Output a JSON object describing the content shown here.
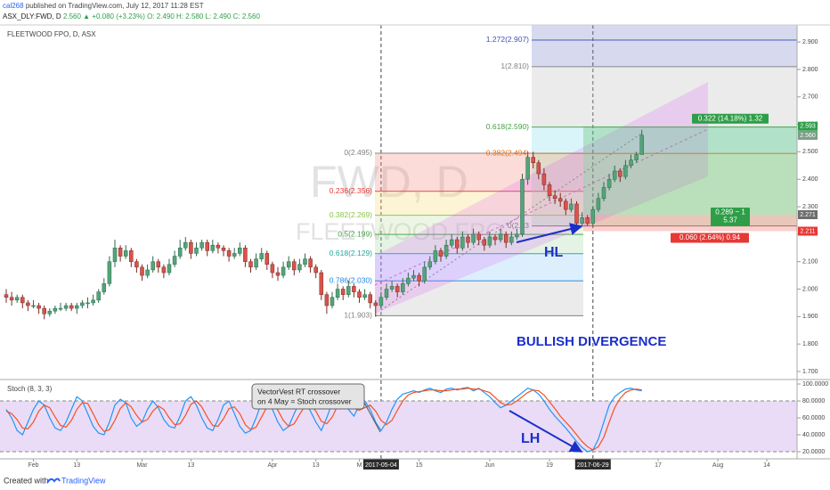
{
  "header": {
    "user": "cal268",
    "published": "published on TradingView.com, July 12, 2017 11:28 EST",
    "symbol": "ASX_DLY:FWD, D",
    "last": "2.560",
    "change": "▲ +0.080 (+3.23%)",
    "ohlc": "O: 2.490 H: 2.580 L: 2.490 C: 2.560"
  },
  "footer": {
    "created": "Created with",
    "brand": "TradingView"
  },
  "chart_data": [
    {
      "type": "candlestick",
      "title": "FLEETWOOD FPO, D, ASX",
      "watermark": {
        "symbol": "FWD, D",
        "name": "FLEETWOOD FPO"
      },
      "up_color": "#53a47a",
      "down_color": "#d9534a",
      "grid": false,
      "ylim": [
        1.674,
        2.962
      ],
      "yticks": [
        {
          "value": 2.9,
          "label": "2.900"
        },
        {
          "value": 2.8,
          "label": "2.800"
        },
        {
          "value": 2.7,
          "label": "2.700"
        },
        {
          "value": 2.6,
          "label": "2.600"
        },
        {
          "value": 2.5,
          "label": "2.500"
        },
        {
          "value": 2.4,
          "label": "2.400"
        },
        {
          "value": 2.3,
          "label": "2.300"
        },
        {
          "value": 2.2,
          "label": "2.200"
        },
        {
          "value": 2.1,
          "label": "2.100"
        },
        {
          "value": 2.0,
          "label": "2.000"
        },
        {
          "value": 1.9,
          "label": "1.900"
        },
        {
          "value": 1.8,
          "label": "1.800"
        },
        {
          "value": 1.7,
          "label": "1.700"
        }
      ],
      "xticks": [
        {
          "value": 5,
          "label": "Feb"
        },
        {
          "value": 13,
          "label": "13"
        },
        {
          "value": 25,
          "label": "Mar"
        },
        {
          "value": 34,
          "label": "13"
        },
        {
          "value": 49,
          "label": "Apr"
        },
        {
          "value": 57,
          "label": "13"
        },
        {
          "value": 65,
          "label": "M"
        },
        {
          "value": 69,
          "label": "2017-05-04",
          "highlight": true
        },
        {
          "value": 76,
          "label": "15"
        },
        {
          "value": 89,
          "label": "Jun"
        },
        {
          "value": 100,
          "label": "19"
        },
        {
          "value": 108,
          "label": "2017-06-29",
          "highlight": true
        },
        {
          "value": 120,
          "label": "17"
        },
        {
          "value": 131,
          "label": "Aug"
        },
        {
          "value": 140,
          "label": "14"
        }
      ],
      "ohlc": [
        [
          1.98,
          2.0,
          1.95,
          1.97
        ],
        [
          1.97,
          1.99,
          1.94,
          1.96
        ],
        [
          1.96,
          1.98,
          1.95,
          1.97
        ],
        [
          1.97,
          1.98,
          1.93,
          1.95
        ],
        [
          1.95,
          1.96,
          1.92,
          1.94
        ],
        [
          1.94,
          1.96,
          1.93,
          1.94
        ],
        [
          1.94,
          1.95,
          1.91,
          1.93
        ],
        [
          1.93,
          1.94,
          1.89,
          1.91
        ],
        [
          1.91,
          1.93,
          1.9,
          1.92
        ],
        [
          1.92,
          1.94,
          1.91,
          1.93
        ],
        [
          1.93,
          1.95,
          1.92,
          1.93
        ],
        [
          1.93,
          1.95,
          1.92,
          1.94
        ],
        [
          1.94,
          1.95,
          1.92,
          1.93
        ],
        [
          1.93,
          1.95,
          1.91,
          1.94
        ],
        [
          1.94,
          1.96,
          1.93,
          1.95
        ],
        [
          1.95,
          1.97,
          1.93,
          1.95
        ],
        [
          1.95,
          1.98,
          1.94,
          1.96
        ],
        [
          1.96,
          2.0,
          1.95,
          1.99
        ],
        [
          1.99,
          2.04,
          1.98,
          2.02
        ],
        [
          2.02,
          2.12,
          2.01,
          2.1
        ],
        [
          2.1,
          2.18,
          2.08,
          2.15
        ],
        [
          2.15,
          2.16,
          2.1,
          2.12
        ],
        [
          2.12,
          2.16,
          2.11,
          2.14
        ],
        [
          2.14,
          2.15,
          2.08,
          2.1
        ],
        [
          2.1,
          2.11,
          2.06,
          2.08
        ],
        [
          2.08,
          2.09,
          2.03,
          2.05
        ],
        [
          2.05,
          2.09,
          2.04,
          2.07
        ],
        [
          2.07,
          2.12,
          2.06,
          2.1
        ],
        [
          2.1,
          2.11,
          2.06,
          2.08
        ],
        [
          2.08,
          2.09,
          2.04,
          2.06
        ],
        [
          2.06,
          2.11,
          2.05,
          2.09
        ],
        [
          2.09,
          2.14,
          2.08,
          2.12
        ],
        [
          2.12,
          2.18,
          2.11,
          2.15
        ],
        [
          2.15,
          2.19,
          2.14,
          2.17
        ],
        [
          2.17,
          2.18,
          2.11,
          2.13
        ],
        [
          2.13,
          2.17,
          2.12,
          2.15
        ],
        [
          2.15,
          2.18,
          2.14,
          2.17
        ],
        [
          2.17,
          2.18,
          2.12,
          2.14
        ],
        [
          2.14,
          2.18,
          2.13,
          2.16
        ],
        [
          2.16,
          2.17,
          2.13,
          2.15
        ],
        [
          2.15,
          2.16,
          2.12,
          2.14
        ],
        [
          2.14,
          2.15,
          2.1,
          2.12
        ],
        [
          2.12,
          2.15,
          2.11,
          2.13
        ],
        [
          2.13,
          2.17,
          2.12,
          2.15
        ],
        [
          2.15,
          2.16,
          2.08,
          2.1
        ],
        [
          2.1,
          2.11,
          2.06,
          2.08
        ],
        [
          2.08,
          2.13,
          2.07,
          2.11
        ],
        [
          2.11,
          2.15,
          2.1,
          2.13
        ],
        [
          2.13,
          2.14,
          2.07,
          2.09
        ],
        [
          2.09,
          2.1,
          2.04,
          2.06
        ],
        [
          2.06,
          2.08,
          2.03,
          2.05
        ],
        [
          2.05,
          2.1,
          2.04,
          2.08
        ],
        [
          2.08,
          2.12,
          2.07,
          2.1
        ],
        [
          2.1,
          2.11,
          2.05,
          2.07
        ],
        [
          2.07,
          2.11,
          2.06,
          2.09
        ],
        [
          2.09,
          2.13,
          2.08,
          2.11
        ],
        [
          2.11,
          2.12,
          2.06,
          2.08
        ],
        [
          2.08,
          2.09,
          2.04,
          2.06
        ],
        [
          2.06,
          2.07,
          1.96,
          1.98
        ],
        [
          1.98,
          1.99,
          1.91,
          1.94
        ],
        [
          1.94,
          1.99,
          1.93,
          1.97
        ],
        [
          1.97,
          2.02,
          1.96,
          2.0
        ],
        [
          2.0,
          2.01,
          1.96,
          1.98
        ],
        [
          1.98,
          2.03,
          1.97,
          2.01
        ],
        [
          2.01,
          2.02,
          1.97,
          1.99
        ],
        [
          1.99,
          2.0,
          1.95,
          1.97
        ],
        [
          1.97,
          2.0,
          1.96,
          1.98
        ],
        [
          1.98,
          1.99,
          1.93,
          1.95
        ],
        [
          1.95,
          1.96,
          1.9,
          1.94
        ],
        [
          1.94,
          1.99,
          1.93,
          1.97
        ],
        [
          1.97,
          2.02,
          1.96,
          2.0
        ],
        [
          2.0,
          2.03,
          1.99,
          2.01
        ],
        [
          2.01,
          2.02,
          1.97,
          1.99
        ],
        [
          1.99,
          2.04,
          1.98,
          2.02
        ],
        [
          2.02,
          2.06,
          2.01,
          2.04
        ],
        [
          2.04,
          2.07,
          2.03,
          2.05
        ],
        [
          2.05,
          2.06,
          2.01,
          2.03
        ],
        [
          2.03,
          2.1,
          2.02,
          2.08
        ],
        [
          2.08,
          2.12,
          2.07,
          2.1
        ],
        [
          2.1,
          2.16,
          2.09,
          2.14
        ],
        [
          2.14,
          2.15,
          2.1,
          2.12
        ],
        [
          2.12,
          2.18,
          2.11,
          2.16
        ],
        [
          2.16,
          2.2,
          2.15,
          2.18
        ],
        [
          2.18,
          2.19,
          2.13,
          2.15
        ],
        [
          2.15,
          2.21,
          2.14,
          2.19
        ],
        [
          2.19,
          2.2,
          2.15,
          2.17
        ],
        [
          2.17,
          2.22,
          2.16,
          2.2
        ],
        [
          2.2,
          2.21,
          2.16,
          2.18
        ],
        [
          2.18,
          2.19,
          2.14,
          2.16
        ],
        [
          2.16,
          2.21,
          2.15,
          2.19
        ],
        [
          2.19,
          2.2,
          2.16,
          2.18
        ],
        [
          2.18,
          2.22,
          2.17,
          2.2
        ],
        [
          2.2,
          2.21,
          2.15,
          2.17
        ],
        [
          2.17,
          2.21,
          2.16,
          2.19
        ],
        [
          2.19,
          2.22,
          2.18,
          2.2
        ],
        [
          2.2,
          2.42,
          2.19,
          2.4
        ],
        [
          2.4,
          2.5,
          2.38,
          2.48
        ],
        [
          2.48,
          2.5,
          2.44,
          2.46
        ],
        [
          2.46,
          2.47,
          2.4,
          2.42
        ],
        [
          2.42,
          2.44,
          2.36,
          2.38
        ],
        [
          2.38,
          2.39,
          2.32,
          2.34
        ],
        [
          2.34,
          2.36,
          2.31,
          2.33
        ],
        [
          2.33,
          2.35,
          2.3,
          2.32
        ],
        [
          2.32,
          2.33,
          2.27,
          2.29
        ],
        [
          2.29,
          2.33,
          2.28,
          2.31
        ],
        [
          2.31,
          2.32,
          2.22,
          2.24
        ],
        [
          2.24,
          2.28,
          2.23,
          2.26
        ],
        [
          2.26,
          2.27,
          2.23,
          2.24
        ],
        [
          2.24,
          2.3,
          2.23,
          2.29
        ],
        [
          2.29,
          2.35,
          2.28,
          2.33
        ],
        [
          2.33,
          2.39,
          2.32,
          2.37
        ],
        [
          2.37,
          2.42,
          2.36,
          2.4
        ],
        [
          2.4,
          2.45,
          2.39,
          2.43
        ],
        [
          2.43,
          2.44,
          2.39,
          2.41
        ],
        [
          2.41,
          2.47,
          2.4,
          2.45
        ],
        [
          2.45,
          2.49,
          2.44,
          2.47
        ],
        [
          2.47,
          2.5,
          2.46,
          2.49
        ],
        [
          2.49,
          2.58,
          2.49,
          2.56
        ]
      ],
      "fib_retracement": [
        {
          "value": 2.495,
          "label": "0(2.495)",
          "color": "#808080"
        },
        {
          "value": 2.356,
          "label": "0.236(2.356)",
          "color": "#e53935",
          "fill": "#f28b82"
        },
        {
          "value": 2.269,
          "label": "0.382(2.269)",
          "color": "#8bc34a",
          "fill": "#f7d774"
        },
        {
          "value": 2.199,
          "label": "0.5(2.199)",
          "color": "#43a047",
          "fill": "#c5e1a5"
        },
        {
          "value": 2.129,
          "label": "0.618(2.129)",
          "color": "#26a69a",
          "fill": "#a5d6a7"
        },
        {
          "value": 2.03,
          "label": "0.786(2.030)",
          "color": "#1e88e5",
          "fill": "#90caf9"
        },
        {
          "value": 1.903,
          "label": "1(1.903)",
          "color": "#808080",
          "fill": "#bdbdbd"
        }
      ],
      "fib_extension": [
        {
          "value": 2.907,
          "label": "1.272(2.907)",
          "color": "#3f51b5",
          "fill": "#7986cb"
        },
        {
          "value": 2.81,
          "label": "1(2.810)",
          "color": "#808080",
          "fill": "#7986cb"
        },
        {
          "value": 2.59,
          "label": "0.618(2.590)",
          "color": "#43a047",
          "fill": "#bdbdbd"
        },
        {
          "value": 2.494,
          "label": "0.382(2.494)",
          "color": "#ef6c00",
          "fill": "#80deea"
        },
        {
          "value": 2.23,
          "label": "0(2.23",
          "color": "#808080",
          "fill": "#a5d6a7"
        }
      ],
      "price_tags": [
        {
          "value": 2.593,
          "label": "2.593",
          "color": "#2e9e48"
        },
        {
          "value": 2.56,
          "label": "2.560",
          "color": "#7a9e86"
        },
        {
          "value": 2.271,
          "label": "2.271",
          "color": "#6d6d6d"
        },
        {
          "value": 2.211,
          "label": "2.211",
          "color": "#e53935"
        }
      ],
      "position": {
        "target_label": "0.322 (14.18%) 1.32",
        "ratio_label": [
          "0.289 ~ 1",
          "5.37"
        ],
        "stop_label": "0.060 (2.64%) 0.94"
      },
      "annotations": {
        "hl": "HL",
        "divergence": "BULLISH DIVERGENCE"
      }
    },
    {
      "type": "line",
      "title": "Stoch (8, 3, 3)",
      "ylim": [
        11.6,
        103.2
      ],
      "yticks": [
        {
          "value": 100,
          "label": "100.0000"
        },
        {
          "value": 80,
          "label": "80.0000"
        },
        {
          "value": 60,
          "label": "60.0000"
        },
        {
          "value": 40,
          "label": "40.0000"
        },
        {
          "value": 20,
          "label": "20.0000"
        }
      ],
      "bands": [
        80,
        20
      ],
      "band_color": "#eadcf7",
      "series": [
        {
          "color": "#2196f3",
          "values": [
            70,
            60,
            45,
            40,
            55,
            70,
            80,
            75,
            60,
            48,
            45,
            55,
            70,
            85,
            80,
            65,
            50,
            42,
            40,
            55,
            75,
            82,
            78,
            60,
            50,
            55,
            70,
            80,
            72,
            58,
            50,
            48,
            62,
            80,
            85,
            75,
            60,
            48,
            45,
            58,
            75,
            80,
            65,
            50,
            42,
            45,
            60,
            78,
            82,
            70,
            55,
            45,
            50,
            65,
            78,
            80,
            68,
            55,
            45,
            60,
            78,
            85,
            80,
            70,
            62,
            75,
            80,
            70,
            55,
            45,
            55,
            70,
            82,
            88,
            90,
            92,
            90,
            93,
            95,
            92,
            90,
            94,
            95,
            93,
            95,
            96,
            92,
            95,
            90,
            85,
            78,
            72,
            75,
            80,
            85,
            90,
            95,
            93,
            88,
            80,
            70,
            62,
            55,
            48,
            40,
            32,
            25,
            20,
            22,
            35,
            55,
            75,
            85,
            90,
            94,
            95,
            93,
            92
          ]
        },
        {
          "color": "#f4511e",
          "values": [
            68,
            65,
            58,
            48,
            47,
            55,
            68,
            75,
            72,
            61,
            51,
            49,
            57,
            70,
            78,
            77,
            65,
            52,
            44,
            46,
            57,
            71,
            78,
            73,
            63,
            55,
            58,
            68,
            74,
            70,
            60,
            52,
            53,
            63,
            76,
            80,
            73,
            61,
            51,
            50,
            59,
            71,
            73,
            65,
            52,
            46,
            49,
            61,
            73,
            77,
            69,
            57,
            50,
            53,
            64,
            74,
            75,
            68,
            56,
            53,
            61,
            74,
            81,
            78,
            71,
            69,
            72,
            75,
            68,
            57,
            52,
            57,
            69,
            80,
            87,
            90,
            91,
            92,
            93,
            93,
            92,
            92,
            93,
            94,
            94,
            95,
            94,
            94,
            92,
            90,
            84,
            78,
            75,
            76,
            80,
            85,
            90,
            93,
            92,
            87,
            79,
            71,
            62,
            55,
            48,
            40,
            32,
            26,
            22,
            26,
            37,
            55,
            72,
            83,
            90,
            93,
            94,
            93
          ]
        }
      ],
      "annotations": {
        "lh": "LH",
        "note": [
          "VectorVest RT crossover",
          "on 4 May = Stoch crossover"
        ]
      }
    }
  ]
}
